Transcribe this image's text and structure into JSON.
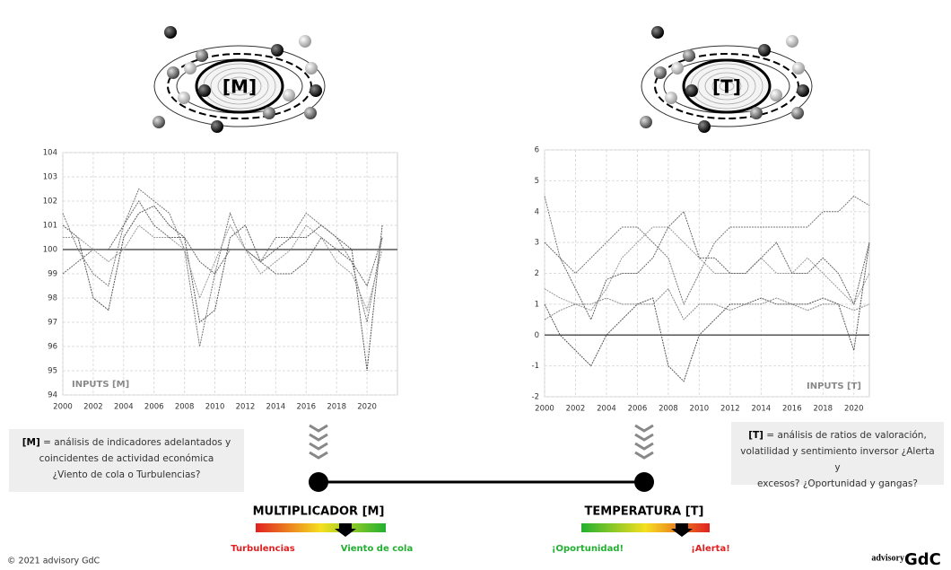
{
  "chart_data": [
    {
      "type": "line",
      "annotation": "INPUTS [M]",
      "x": [
        2000,
        2001,
        2002,
        2003,
        2004,
        2005,
        2006,
        2007,
        2008,
        2009,
        2010,
        2011,
        2012,
        2013,
        2014,
        2015,
        2016,
        2017,
        2018,
        2019,
        2020,
        2021
      ],
      "series": [
        {
          "color": "#555555",
          "values": [
            101,
            100.5,
            98,
            97.5,
            100.5,
            101.5,
            101.8,
            101,
            100.5,
            97,
            97.5,
            100.5,
            101,
            99.5,
            100,
            100.5,
            100.5,
            101,
            100.5,
            100,
            95,
            101
          ]
        },
        {
          "color": "#777777",
          "values": [
            101.5,
            100,
            99,
            98.5,
            101,
            102.5,
            102,
            101.5,
            100,
            96,
            99,
            101.5,
            100,
            99.5,
            100.5,
            100.5,
            101.5,
            101,
            100.5,
            99.5,
            97,
            100.5
          ]
        },
        {
          "color": "#999999",
          "values": [
            100.5,
            100.5,
            100,
            99.5,
            100,
            101,
            100.5,
            100.5,
            100,
            98,
            99.5,
            101,
            100,
            99,
            99.5,
            100,
            101,
            100.5,
            99.5,
            99,
            97.5,
            100
          ]
        },
        {
          "color": "#666666",
          "values": [
            99,
            99.5,
            100,
            100,
            101,
            102,
            101,
            100.5,
            100.5,
            99.5,
            99,
            100,
            100,
            99.5,
            99,
            99,
            99.5,
            100.5,
            100,
            99.5,
            98.5,
            100.5
          ]
        }
      ],
      "reference_line": 100,
      "xlim": [
        2000,
        2022
      ],
      "ylim": [
        94,
        104
      ],
      "xticks": [
        2000,
        2002,
        2004,
        2006,
        2008,
        2010,
        2012,
        2014,
        2016,
        2018,
        2020
      ],
      "yticks": [
        94,
        95,
        96,
        97,
        98,
        99,
        100,
        101,
        102,
        103,
        104
      ],
      "grid": true
    },
    {
      "type": "line",
      "annotation": "INPUTS [T]",
      "x": [
        2000,
        2001,
        2002,
        2003,
        2004,
        2005,
        2006,
        2007,
        2008,
        2009,
        2010,
        2011,
        2012,
        2013,
        2014,
        2015,
        2016,
        2017,
        2018,
        2019,
        2020,
        2021
      ],
      "series": [
        {
          "color": "#777777",
          "values": [
            4.5,
            2.5,
            2,
            2.5,
            3,
            3.5,
            3.5,
            3,
            2.5,
            1,
            2,
            3,
            3.5,
            3.5,
            3.5,
            3.5,
            3.5,
            3.5,
            4,
            4,
            4.5,
            4.2
          ]
        },
        {
          "color": "#999999",
          "values": [
            1.5,
            1.2,
            1,
            0.8,
            1.5,
            2.5,
            3,
            3.5,
            3.5,
            3,
            2.5,
            2,
            2,
            2,
            2.5,
            2,
            2,
            2.5,
            2,
            1.5,
            1,
            2
          ]
        },
        {
          "color": "#555555",
          "values": [
            1,
            0,
            -0.5,
            -1,
            0,
            0.5,
            1,
            1.2,
            -1,
            -1.5,
            0,
            0.5,
            1,
            1,
            1.2,
            1,
            1,
            1,
            1.2,
            1,
            -0.5,
            3
          ]
        },
        {
          "color": "#888888",
          "values": [
            0.5,
            0.8,
            1,
            1,
            1.2,
            1,
            1,
            1,
            1.5,
            0.5,
            1,
            1,
            0.8,
            1,
            1,
            1.2,
            1,
            0.8,
            1,
            1,
            0.8,
            1
          ]
        },
        {
          "color": "#666666",
          "values": [
            3,
            2.5,
            1.5,
            0.5,
            1.8,
            2,
            2,
            2.5,
            3.5,
            4,
            2.5,
            2.5,
            2,
            2,
            2.5,
            3,
            2,
            2,
            2.5,
            2,
            1,
            3
          ]
        }
      ],
      "reference_line": 0,
      "xlim": [
        2000,
        2021
      ],
      "ylim": [
        -2,
        6
      ],
      "xticks": [
        2000,
        2002,
        2004,
        2006,
        2008,
        2010,
        2012,
        2014,
        2016,
        2018,
        2020
      ],
      "yticks": [
        -2,
        -1,
        0,
        1,
        2,
        3,
        4,
        5,
        6
      ],
      "grid": true
    }
  ],
  "atoms": [
    {
      "label": "[M]"
    },
    {
      "label": "[T]"
    }
  ],
  "notes": [
    {
      "key": "[M]",
      "lines": [
        " = análisis de indicadores adelantados y",
        "coincidentes de actividad económica",
        "¿Viento de cola o Turbulencias?"
      ]
    },
    {
      "key": "[T]",
      "lines": [
        " = análisis de ratios de valoración,",
        "volatilidad y sentimiento inversor ¿Alerta y",
        "excesos? ¿Oportunidad y gangas?"
      ]
    }
  ],
  "indicators": [
    {
      "title": "MULTIPLICADOR [M]",
      "left": "Turbulencias",
      "right": "Viento de cola"
    },
    {
      "title": "TEMPERATURA [T]",
      "left": "¡Oportunidad!",
      "right": "¡Alerta!"
    }
  ],
  "footer": "© 2021 advisory GdC",
  "logo": {
    "prefix": "advisory",
    "name": "GdC"
  }
}
